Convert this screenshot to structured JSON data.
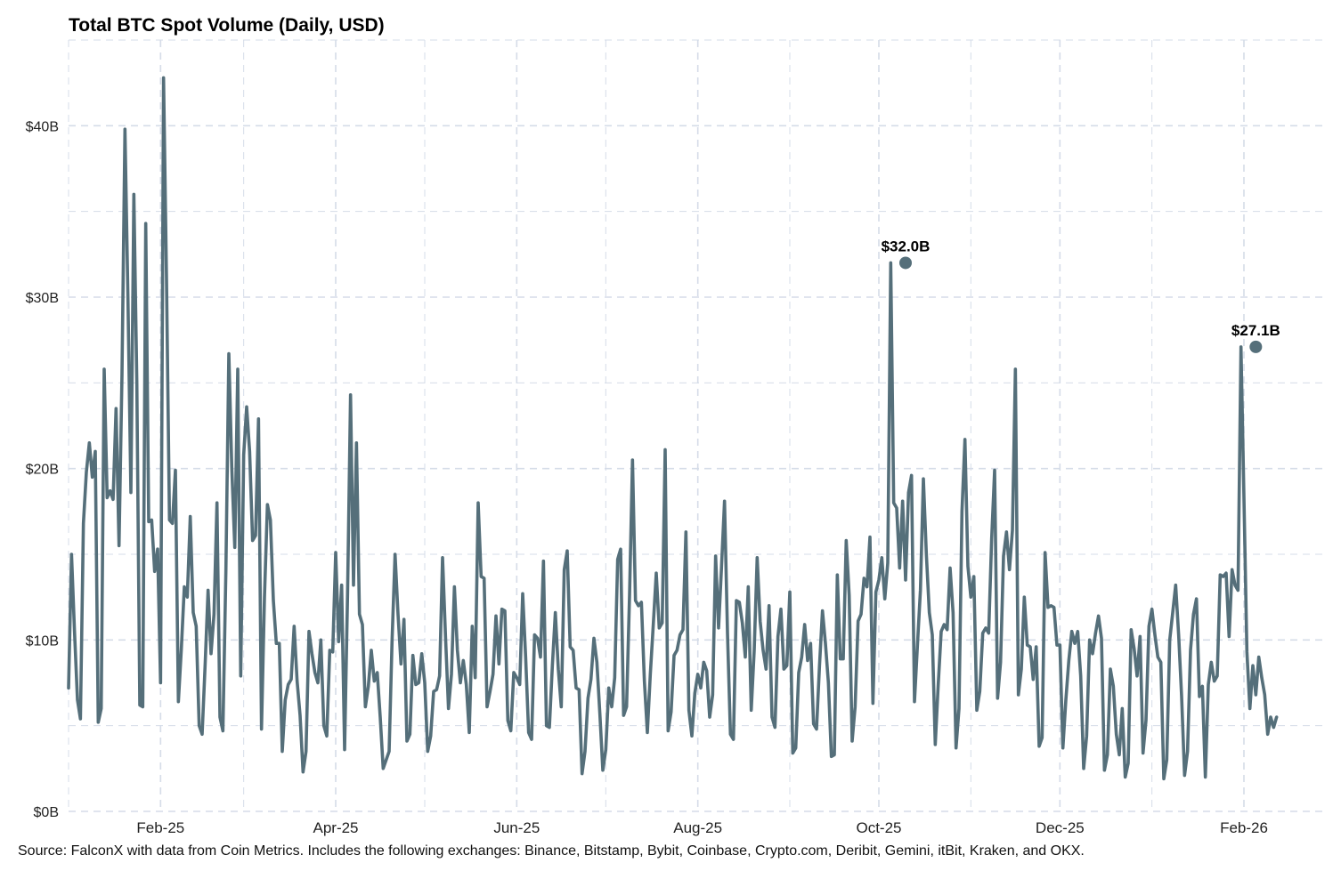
{
  "chart_data": {
    "type": "line",
    "title": "Total BTC Spot Volume (Daily, USD)",
    "xlabel": "",
    "ylabel": "",
    "ylim": [
      0,
      45
    ],
    "grid": true,
    "colors": {
      "line": "#556f7a",
      "grid": "#d5dce8"
    },
    "y_ticks": [
      {
        "value": 0,
        "label": "$0B"
      },
      {
        "value": 10,
        "label": "$10B"
      },
      {
        "value": 20,
        "label": "$20B"
      },
      {
        "value": 30,
        "label": "$30B"
      },
      {
        "value": 40,
        "label": "$40B"
      }
    ],
    "x_ticks": [
      {
        "date": "2025-02-01",
        "label": "Feb-25"
      },
      {
        "date": "2025-04-01",
        "label": "Apr-25"
      },
      {
        "date": "2025-06-01",
        "label": "Jun-25"
      },
      {
        "date": "2025-08-01",
        "label": "Aug-25"
      },
      {
        "date": "2025-10-01",
        "label": "Oct-25"
      },
      {
        "date": "2025-12-01",
        "label": "Dec-25"
      },
      {
        "date": "2026-02-01",
        "label": "Feb-26"
      }
    ],
    "annotations": [
      {
        "date": "2025-10-10",
        "value": 32.0,
        "label": "$32.0B"
      },
      {
        "date": "2026-02-05",
        "value": 27.1,
        "label": "$27.1B"
      }
    ],
    "series": [
      {
        "start_date": "2025-01-01",
        "values": [
          7.2,
          15.0,
          10.5,
          6.5,
          5.4,
          16.8,
          19.8,
          21.5,
          19.5,
          21.0,
          5.2,
          6.0,
          25.8,
          18.3,
          18.7,
          18.2,
          23.5,
          15.5,
          25.5,
          39.8,
          30.0,
          18.6,
          36.0,
          25.0,
          6.2,
          6.1,
          34.3,
          16.9,
          17.0,
          14.0,
          15.3,
          7.5,
          42.8,
          31.0,
          17.0,
          16.8,
          19.9,
          6.4,
          9.5,
          13.1,
          12.5,
          17.2,
          11.6,
          10.8,
          5.0,
          4.5,
          8.5,
          12.9,
          9.2,
          11.5,
          18.0,
          5.5,
          4.7,
          14.0,
          26.7,
          20.0,
          15.4,
          25.8,
          7.9,
          20.8,
          23.6,
          21.0,
          15.8,
          16.1,
          22.9,
          4.8,
          12.5,
          17.9,
          17.0,
          12.3,
          9.8,
          9.8,
          3.5,
          6.5,
          7.4,
          7.7,
          10.8,
          7.6,
          5.6,
          2.3,
          3.5,
          10.5,
          9.2,
          8.1,
          7.5,
          10.0,
          5.0,
          4.4,
          9.4,
          9.3,
          15.1,
          9.9,
          13.2,
          3.6,
          12.7,
          24.3,
          13.2,
          21.5,
          11.5,
          10.9,
          6.1,
          7.3,
          9.4,
          7.6,
          8.1,
          5.5,
          2.5,
          3.0,
          3.5,
          10.0,
          15.0,
          11.5,
          8.6,
          11.2,
          4.1,
          4.5,
          9.1,
          7.4,
          7.5,
          9.2,
          7.5,
          3.5,
          4.4,
          7.0,
          7.1,
          7.9,
          14.8,
          10.2,
          6.0,
          8.0,
          13.1,
          9.4,
          7.5,
          8.8,
          7.4,
          4.6,
          10.8,
          7.8,
          18.0,
          13.7,
          13.6,
          6.1,
          7.0,
          8.0,
          11.4,
          8.6,
          11.8,
          11.7,
          5.3,
          4.7,
          8.1,
          7.8,
          7.4,
          12.7,
          9.0,
          4.6,
          4.2,
          10.3,
          10.1,
          9.0,
          14.6,
          5.0,
          4.9,
          8.5,
          11.6,
          8.3,
          6.1,
          14.1,
          15.2,
          9.6,
          9.4,
          7.2,
          7.1,
          2.2,
          3.5,
          6.6,
          7.7,
          10.1,
          8.7,
          5.7,
          2.4,
          3.6,
          7.2,
          6.1,
          7.8,
          14.7,
          15.3,
          5.6,
          6.1,
          12.6,
          20.5,
          12.3,
          12.0,
          12.2,
          7.6,
          4.6,
          8.0,
          10.9,
          13.9,
          10.7,
          11.0,
          21.1,
          4.7,
          5.8,
          9.1,
          9.4,
          10.3,
          10.6,
          16.3,
          5.9,
          4.4,
          6.9,
          8.0,
          7.2,
          8.7,
          8.2,
          5.5,
          6.8,
          14.9,
          10.7,
          14.3,
          18.1,
          10.4,
          4.5,
          4.2,
          12.3,
          12.2,
          11.0,
          9.0,
          13.1,
          5.9,
          9.4,
          14.8,
          11.1,
          9.4,
          8.3,
          12.0,
          5.5,
          4.9,
          10.2,
          11.8,
          8.3,
          8.5,
          12.8,
          3.4,
          3.7,
          8.1,
          9.0,
          10.9,
          8.8,
          9.8,
          5.1,
          4.8,
          8.5,
          11.7,
          9.8,
          7.5,
          3.2,
          3.3,
          13.8,
          8.9,
          8.9,
          15.8,
          12.6,
          4.1,
          6.1,
          11.1,
          11.5,
          13.6,
          13.1,
          16.0,
          6.3,
          12.8,
          13.5,
          14.8,
          12.4,
          14.5,
          32.0,
          18.0,
          17.7,
          14.2,
          18.1,
          13.5,
          18.6,
          19.6,
          6.4,
          9.7,
          12.9,
          19.4,
          15.0,
          11.6,
          10.3,
          3.9,
          7.4,
          10.5,
          10.9,
          10.6,
          14.2,
          11.6,
          3.7,
          6.0,
          17.5,
          21.7,
          14.3,
          12.5,
          13.7,
          5.9,
          7.0,
          10.4,
          10.7,
          10.4,
          15.9,
          19.9,
          6.6,
          8.7,
          14.9,
          16.3,
          14.1,
          16.4,
          25.8,
          6.8,
          8.3,
          12.5,
          9.7,
          9.6,
          7.7,
          9.6,
          3.8,
          4.3,
          15.1,
          11.9,
          12.0,
          11.9,
          9.7,
          9.7,
          3.7,
          6.5,
          8.8,
          10.5,
          9.8,
          10.5,
          7.9,
          2.5,
          4.4,
          10.0,
          9.2,
          10.4,
          11.4,
          10.1,
          2.4,
          3.3,
          8.3,
          7.3,
          4.5,
          3.3,
          6.0,
          2.0,
          2.8,
          10.6,
          9.5,
          7.9,
          10.2,
          3.4,
          5.3,
          10.8,
          11.8,
          10.3,
          9.0,
          8.7,
          1.9,
          3.0,
          10.0,
          11.6,
          13.2,
          10.3,
          6.7,
          2.1,
          3.5,
          9.4,
          11.5,
          12.4,
          6.7,
          7.3,
          2.0,
          7.4,
          8.7,
          7.6,
          7.9,
          13.8,
          13.7,
          13.9,
          10.2,
          14.1,
          13.2,
          12.9,
          27.1,
          18.3,
          9.3,
          6.0,
          8.5,
          6.8,
          9.0,
          7.8,
          6.8,
          4.5,
          5.5,
          4.9,
          5.5
        ]
      }
    ],
    "source": "Source: FalconX with data from Coin Metrics. Includes the following exchanges: Binance, Bitstamp, Bybit, Coinbase, Crypto.com, Deribit, Gemini, itBit, Kraken, and OKX."
  }
}
